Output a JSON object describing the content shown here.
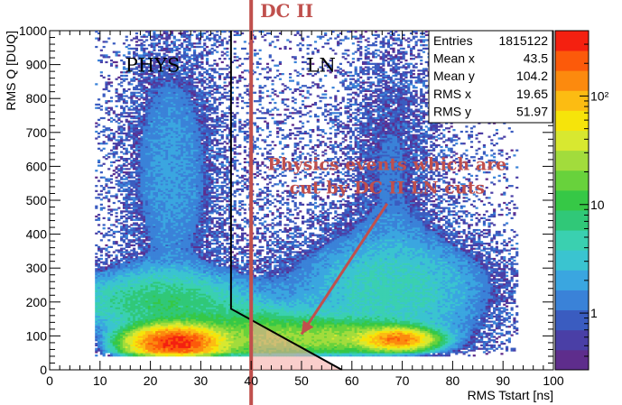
{
  "chart_data": {
    "type": "heatmap",
    "xlabel": "RMS Tstart [ns]",
    "ylabel": "RMS Q [DUQ]",
    "xlim": [
      0,
      100
    ],
    "ylim": [
      0,
      1000
    ],
    "x_ticks": [
      "0",
      "10",
      "20",
      "30",
      "40",
      "50",
      "60",
      "70",
      "80",
      "90",
      "100"
    ],
    "y_ticks": [
      "0",
      "100",
      "200",
      "300",
      "400",
      "500",
      "600",
      "700",
      "800",
      "900",
      "1000"
    ],
    "z_scale": "log",
    "z_ticks": [
      {
        "value": 1,
        "label": "1"
      },
      {
        "value": 10,
        "label": "10"
      },
      {
        "value": 100,
        "label": "10²"
      }
    ],
    "palette": [
      "#5e2d8c",
      "#4a3fa6",
      "#3a5cc0",
      "#3a82d8",
      "#3aa6e0",
      "#3ac4d0",
      "#3ad0b0",
      "#30c878",
      "#36c846",
      "#68d23c",
      "#a2dc3c",
      "#d8e830",
      "#f6e40a",
      "#fcbc12",
      "#fc8a0e",
      "#fc5a0a",
      "#f42010"
    ],
    "stats": {
      "rows": [
        {
          "label": "Entries",
          "value": "1815122"
        },
        {
          "label": "Mean x",
          "value": "43.5"
        },
        {
          "label": "Mean y",
          "value": "104.2"
        },
        {
          "label": "RMS x",
          "value": "19.65"
        },
        {
          "label": "RMS y",
          "value": "51.97"
        }
      ]
    },
    "clusters": [
      {
        "x": 25,
        "y": 80,
        "sx": 4.5,
        "sy": 25,
        "peak": 300
      },
      {
        "x": 69,
        "y": 90,
        "sx": 3.5,
        "sy": 16,
        "peak": 160
      },
      {
        "x": 58,
        "y": 95,
        "sx": 9,
        "sy": 28,
        "peak": 22
      },
      {
        "x": 40,
        "y": 95,
        "sx": 9,
        "sy": 45,
        "peak": 16
      },
      {
        "x": 22,
        "y": 200,
        "sx": 11,
        "sy": 55,
        "peak": 7
      },
      {
        "x": 68,
        "y": 230,
        "sx": 12,
        "sy": 100,
        "peak": 4
      },
      {
        "x": 24,
        "y": 600,
        "sx": 6,
        "sy": 260,
        "peak": 1.6
      },
      {
        "x": 68,
        "y": 620,
        "sx": 6,
        "sy": 260,
        "peak": 1.0
      },
      {
        "x": 45,
        "y": 500,
        "sx": 35,
        "sy": 350,
        "peak": 0.35
      }
    ],
    "regions": [
      {
        "label": "PHYS",
        "x": 15,
        "y": 900
      },
      {
        "label": "LN",
        "x": 51,
        "y": 900
      }
    ],
    "ln_cut_line": [
      [
        36,
        1000
      ],
      [
        36,
        180
      ],
      [
        58,
        0
      ]
    ],
    "dc_cut_x": 40,
    "dc_label": "DC II",
    "annotation": {
      "lines": [
        "Physics events which are",
        "cut by DC II LN cuts"
      ],
      "text_x": 67,
      "text_y": 595,
      "arrow_from": [
        67,
        490
      ],
      "arrow_to": [
        50,
        105
      ]
    },
    "colors": {
      "annotation": "#c0504d",
      "cut_line": "#000000",
      "highlight": "#f4a6a0"
    }
  }
}
